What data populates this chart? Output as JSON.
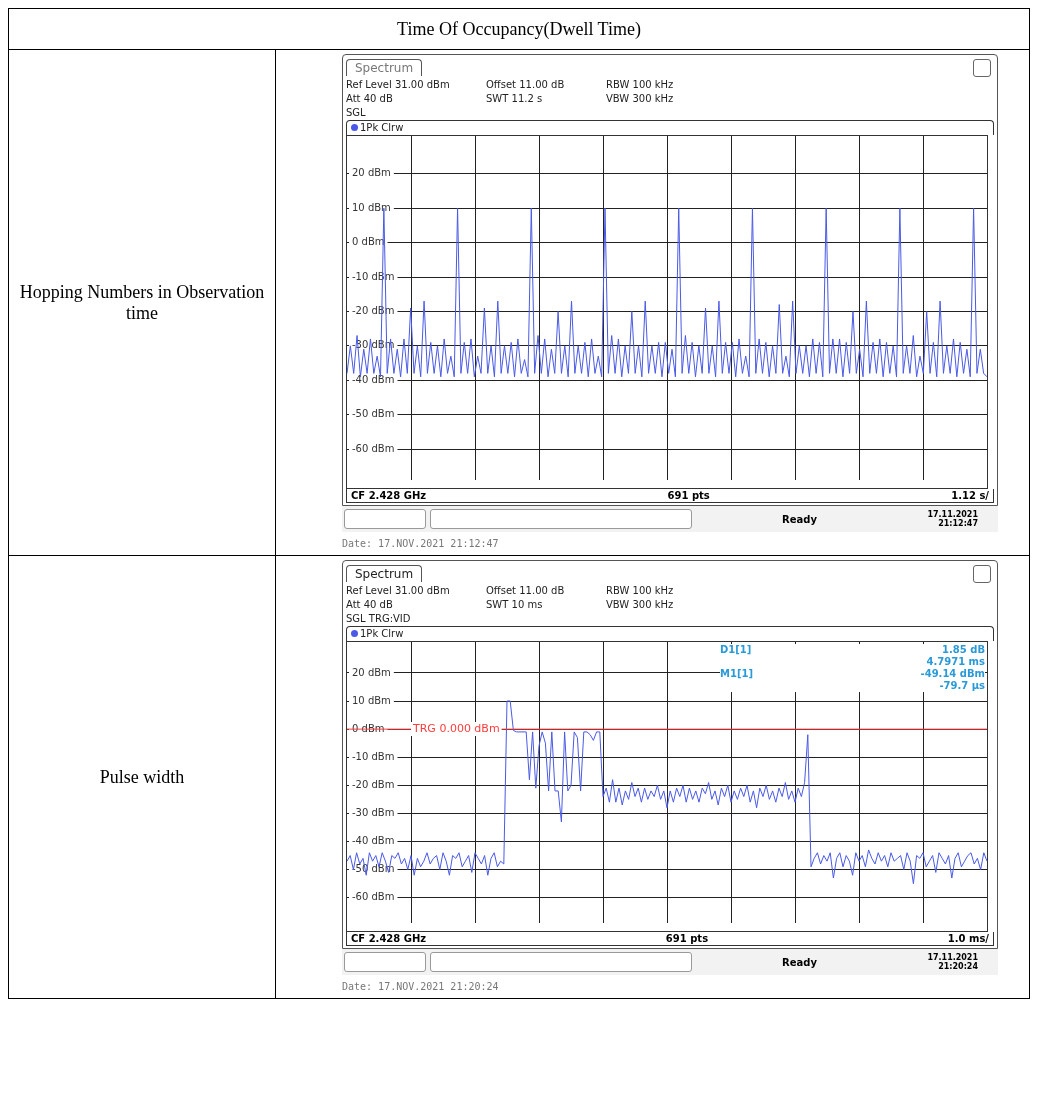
{
  "chart_data": [
    {
      "type": "line",
      "title": "Time Of Occupancy(Dwell Time)",
      "subtitle": "Hopping Numbers in Observation time",
      "legend": "top left",
      "annotations": [
        "Spectrum",
        "Ref Level 31.00 dBm",
        "Offset 11.00 dB",
        "RBW 100 kHz",
        "Att 40 dB",
        "SWT 11.2 s",
        "VBW 300 kHz",
        "SGL",
        "CF 2.428 GHz",
        "691 pts",
        "1.12 s/",
        "Ready",
        "17.11.2021",
        "21:12:47",
        "Date: 17.NOV.2021  21:12:47"
      ],
      "categories": [
        null,
        null,
        null,
        null,
        null,
        null,
        null,
        null,
        null,
        null,
        null,
        null,
        null,
        null,
        null,
        null,
        null,
        null,
        null,
        null,
        null,
        null,
        null,
        null,
        null,
        null,
        null,
        null,
        null,
        null,
        null,
        null,
        null,
        null,
        null,
        null,
        null,
        null,
        null,
        null,
        null,
        null,
        null,
        null,
        null,
        null,
        null,
        null,
        null,
        null,
        null,
        null,
        null,
        null,
        null,
        null,
        null,
        null,
        null,
        null,
        null,
        null,
        null,
        null,
        null,
        null,
        null,
        null,
        null,
        null,
        null,
        null,
        null,
        null,
        null,
        null,
        null,
        null,
        null,
        null,
        null,
        null,
        null,
        null,
        null,
        null,
        null,
        null,
        null,
        null,
        null,
        null,
        null,
        null,
        null,
        null,
        null,
        null,
        null,
        null,
        null,
        null,
        null,
        null,
        null,
        null,
        null,
        null,
        null,
        null,
        null,
        null,
        null,
        null,
        null,
        null,
        null,
        null,
        null,
        null,
        null,
        null,
        null,
        null,
        null,
        null,
        null,
        null,
        null,
        null,
        null,
        null,
        null,
        null,
        null,
        null,
        null,
        null,
        null,
        null,
        null,
        null,
        null,
        null,
        null,
        null,
        null,
        null,
        null,
        null,
        null,
        null,
        null,
        null,
        null,
        null,
        null,
        null,
        null,
        null,
        null,
        null,
        null,
        null,
        null,
        null,
        null,
        null,
        null,
        null,
        null,
        null,
        null,
        null,
        null,
        null,
        null,
        null,
        null,
        null,
        null,
        null,
        null,
        null,
        null,
        null,
        null,
        null,
        null,
        null,
        null,
        null
      ],
      "ylim": [
        -69,
        31
      ],
      "yticks": [
        {
          "value": 20,
          "label": "20 dBm"
        },
        {
          "value": 10,
          "label": "10 dBm"
        },
        {
          "value": 0,
          "label": "0 dBm"
        },
        {
          "value": -10,
          "label": "-10 dBm"
        },
        {
          "value": -20,
          "label": "-20 dBm"
        },
        {
          "value": -30,
          "label": "-30 dBm"
        },
        {
          "value": -40,
          "label": "-40 dBm"
        },
        {
          "value": -50,
          "label": "-50 dBm"
        },
        {
          "value": -60,
          "label": "-60 dBm"
        }
      ],
      "grid": true,
      "tick_labels": "y",
      "series": [
        {
          "name": "1Pk Clrw",
          "color": "#4a5ae6",
          "values": [
            -38,
            -30,
            -38,
            -27,
            -39,
            -31,
            -38,
            -28,
            -38,
            -33,
            -39,
            10,
            -38,
            -28,
            -38,
            -31,
            -39,
            -28,
            -38,
            -19,
            -38,
            -30,
            -39,
            -17,
            -38,
            -29,
            -38,
            -30,
            -39,
            -28,
            -38,
            -33,
            -39,
            10,
            -38,
            -29,
            -38,
            -28,
            -39,
            -33,
            -38,
            -19,
            -38,
            -30,
            -39,
            -17,
            -38,
            -30,
            -38,
            -29,
            -39,
            -28,
            -38,
            -34,
            -39,
            10,
            -38,
            -27,
            -38,
            -28,
            -39,
            -31,
            -38,
            -20,
            -38,
            -30,
            -39,
            -17,
            -38,
            -30,
            -38,
            -29,
            -39,
            -28,
            -38,
            -33,
            -39,
            10,
            -38,
            -27,
            -38,
            -28,
            -39,
            -30,
            -38,
            -20,
            -38,
            -30,
            -39,
            -17,
            -38,
            -30,
            -38,
            -29,
            -39,
            -29,
            -38,
            -31,
            -39,
            10,
            -38,
            -27,
            -38,
            -29,
            -39,
            -30,
            -38,
            -19,
            -38,
            -30,
            -39,
            -17,
            -38,
            -29,
            -38,
            -29,
            -39,
            -28,
            -38,
            -33,
            -39,
            10,
            -38,
            -28,
            -38,
            -29,
            -39,
            -30,
            -38,
            -18,
            -38,
            -33,
            -39,
            -17,
            -38,
            -30,
            -38,
            -30,
            -39,
            -28,
            -38,
            -29,
            -39,
            10,
            -38,
            -28,
            -38,
            -28,
            -39,
            -29,
            -38,
            -20,
            -38,
            -31,
            -39,
            -17,
            -38,
            -29,
            -38,
            -28,
            -39,
            -29,
            -38,
            -30,
            -39,
            10,
            -38,
            -30,
            -38,
            -27,
            -39,
            -33,
            -38,
            -20,
            -38,
            -29,
            -39,
            -17,
            -38,
            -30,
            -38,
            -28,
            -39,
            -29,
            -38,
            -31,
            -39,
            10,
            -38,
            -31,
            -38,
            -39
          ]
        }
      ]
    },
    {
      "type": "line",
      "legend": "top left",
      "annotations": [
        "Spectrum",
        "Ref Level 31.00 dBm",
        "Offset 11.00 dB",
        "RBW 100 kHz",
        "Att 40 dB",
        "SWT 10 ms",
        "VBW 300 kHz",
        "SGL TRG:VID",
        "CF 2.428 GHz",
        "691 pts",
        "1.0 ms/",
        "Ready",
        "17.11.2021",
        "21:20:24",
        "Date: 17.NOV.2021  21:20:24",
        "D1[1]",
        "1.85 dB",
        "4.7971 ms",
        "M1[1]",
        "-49.14 dBm",
        "-79.7 µs",
        "Pulse width"
      ],
      "categories": [
        null,
        null,
        null,
        null,
        null,
        null,
        null,
        null,
        null,
        null,
        null,
        null,
        null,
        null,
        null,
        null,
        null,
        null,
        null,
        null,
        null,
        null,
        null,
        null,
        null,
        null,
        null,
        null,
        null,
        null,
        null,
        null,
        null,
        null,
        null,
        null,
        null,
        null,
        null,
        null,
        null,
        null,
        null,
        null,
        null,
        null,
        null,
        null,
        null,
        null,
        null,
        null,
        null,
        null,
        null,
        null,
        null,
        null,
        null,
        null,
        null,
        null,
        null,
        null,
        null,
        null,
        null,
        null,
        null,
        null,
        null,
        null,
        null,
        null,
        null,
        null,
        null,
        null,
        null,
        null,
        null,
        null,
        null,
        null,
        null,
        null,
        null,
        null,
        null,
        null,
        null,
        null,
        null,
        null,
        null,
        null,
        null,
        null,
        null,
        null,
        null,
        null,
        null,
        null,
        null,
        null,
        null,
        null,
        null,
        null,
        null,
        null,
        null,
        null,
        null,
        null,
        null,
        null,
        null,
        null,
        null,
        null,
        null,
        null,
        null,
        null,
        null,
        null,
        null,
        null,
        null,
        null,
        null,
        null,
        null,
        null,
        null,
        null,
        null,
        null,
        null,
        null,
        null,
        null,
        null,
        null,
        null,
        null,
        null,
        null,
        null,
        null,
        null,
        null,
        null,
        null,
        null,
        null,
        null,
        null,
        null,
        null,
        null,
        null,
        null,
        null,
        null,
        null,
        null,
        null,
        null,
        null,
        null,
        null,
        null,
        null,
        null,
        null,
        null,
        null,
        null,
        null,
        null,
        null,
        null,
        null,
        null,
        null,
        null,
        null,
        null,
        null,
        null,
        null,
        null,
        null,
        null,
        null,
        null,
        null,
        null
      ],
      "ylim": [
        -69,
        31
      ],
      "yticks": [
        {
          "value": 20,
          "label": "20 dBm"
        },
        {
          "value": 10,
          "label": "10 dBm"
        },
        {
          "value": 0,
          "label": "0 dBm"
        },
        {
          "value": -10,
          "label": "-10 dBm"
        },
        {
          "value": -20,
          "label": "-20 dBm"
        },
        {
          "value": -30,
          "label": "-30 dBm"
        },
        {
          "value": -40,
          "label": "-40 dBm"
        },
        {
          "value": -50,
          "label": "-50 dBm"
        },
        {
          "value": -60,
          "label": "-60 dBm"
        }
      ],
      "grid": true,
      "tick_labels": "y",
      "ref_lines": [
        {
          "axis": "y",
          "value": 0,
          "label": "TRG 0.000 dBm",
          "color": "#ff3b3b"
        }
      ],
      "series": [
        {
          "name": "1Pk Clrw",
          "color": "#4a5ae6",
          "values": [
            -47,
            -45,
            -50,
            -44,
            -48,
            -46,
            -52,
            -44,
            -47,
            -45,
            -49,
            -44,
            -47,
            -51,
            -45,
            -46,
            -44,
            -48,
            -46,
            -50,
            -45,
            -52,
            -46,
            -49,
            -47,
            -44,
            -48,
            -46,
            -45,
            -50,
            -44,
            -47,
            -52,
            -45,
            -46,
            -44,
            -49,
            -47,
            -45,
            -51,
            -44,
            -46,
            -48,
            -45,
            -52,
            -46,
            -44,
            -49,
            -47,
            -48,
            10,
            10,
            -0.5,
            -1,
            -1,
            -1,
            -1,
            -18,
            -1,
            -21,
            -6,
            -1,
            -5,
            -22,
            -1,
            -22,
            -22,
            -33,
            -1,
            -22,
            -20,
            -1,
            -3,
            -22,
            -1,
            -1,
            -2,
            -4,
            -1,
            -1,
            -24,
            -21,
            -26,
            -18,
            -26,
            -21,
            -27,
            -22,
            -25,
            -19,
            -24,
            -21,
            -26,
            -21,
            -25,
            -22,
            -24,
            -20,
            -25,
            -22,
            -28,
            -22,
            -26,
            -21,
            -24,
            -20,
            -26,
            -21,
            -25,
            -22,
            -26,
            -21,
            -23,
            -19,
            -25,
            -22,
            -27,
            -21,
            -24,
            -20,
            -26,
            -22,
            -25,
            -21,
            -24,
            -20,
            -26,
            -22,
            -28,
            -21,
            -24,
            -20,
            -25,
            -22,
            -26,
            -21,
            -24,
            -19,
            -25,
            -22,
            -26,
            -21,
            -24,
            -19,
            -2,
            -49,
            -46,
            -44,
            -48,
            -45,
            -47,
            -44,
            -53,
            -46,
            -44,
            -49,
            -45,
            -47,
            -52,
            -44,
            -47,
            -45,
            -49,
            -43,
            -46,
            -48,
            -44,
            -47,
            -45,
            -49,
            -44,
            -47,
            -46,
            -45,
            -50,
            -44,
            -47,
            -55,
            -45,
            -46,
            -44,
            -49,
            -47,
            -45,
            -51,
            -44,
            -46,
            -48,
            -45,
            -53,
            -46,
            -44,
            -49,
            -47,
            -45,
            -44,
            -48,
            -46,
            -50,
            -44,
            -47
          ]
        }
      ]
    }
  ]
}
